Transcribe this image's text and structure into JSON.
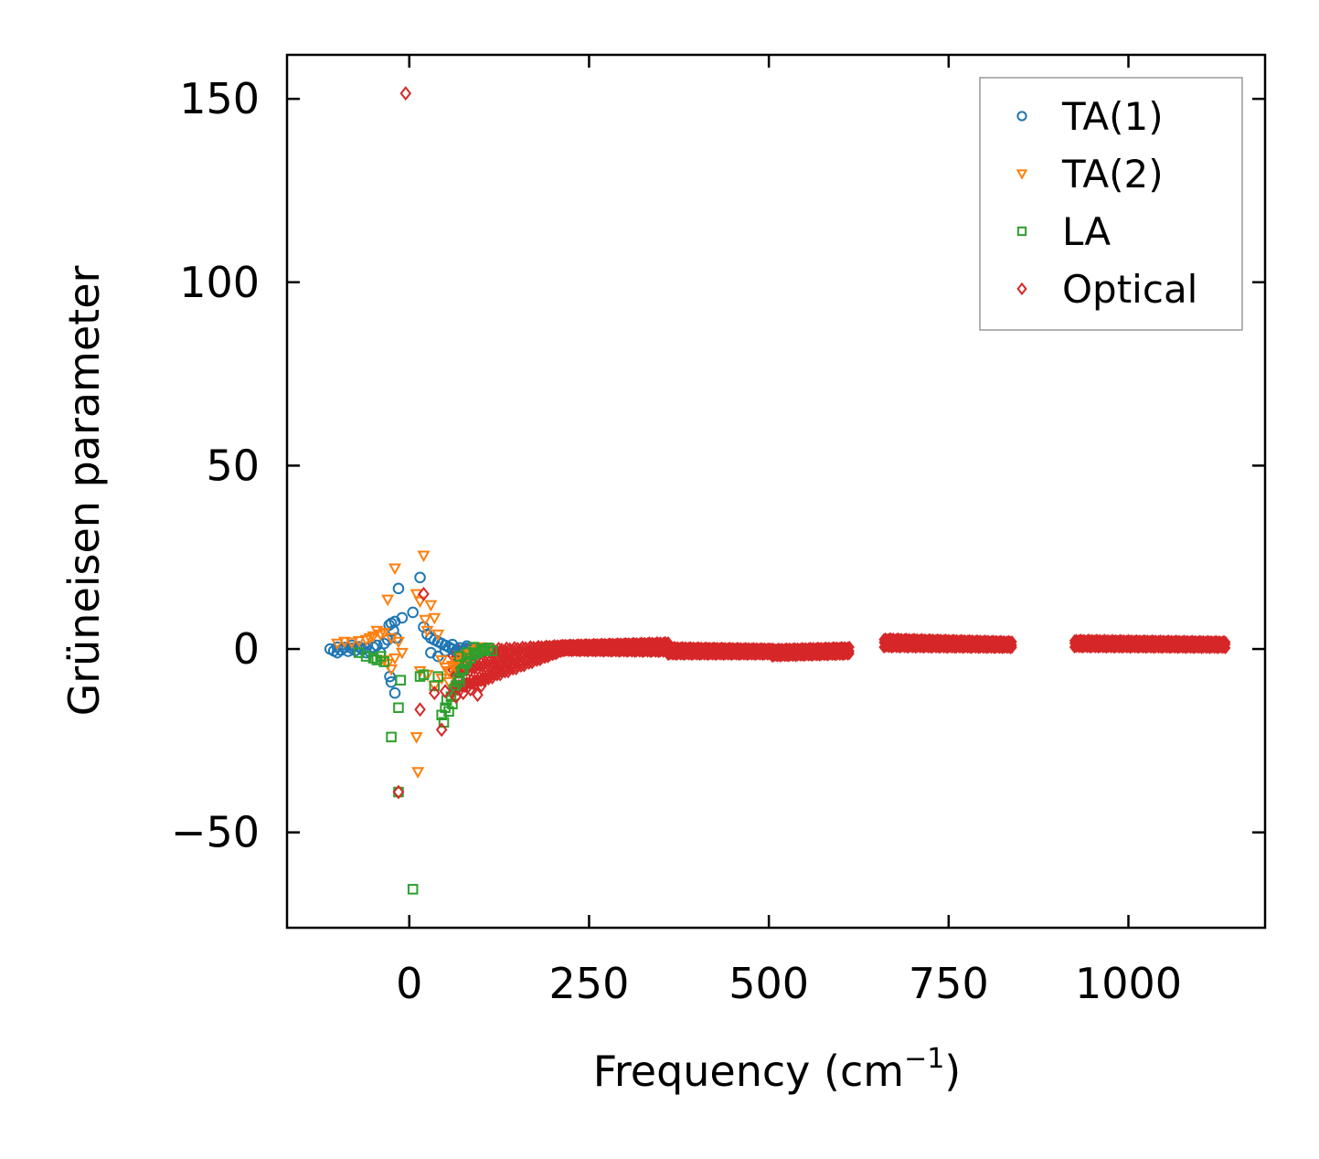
{
  "chart_data": {
    "type": "scatter",
    "title": "",
    "xlabel": "Frequency (cm",
    "xlabel_sup": "−1",
    "xlabel_suffix": ")",
    "ylabel": "Grüneisen parameter",
    "xlim": [
      -170,
      1190
    ],
    "ylim": [
      -76,
      162
    ],
    "x_ticks": [
      0,
      250,
      500,
      750,
      1000
    ],
    "x_tick_labels": [
      "0",
      "250",
      "500",
      "750",
      "1000"
    ],
    "y_ticks": [
      -50,
      0,
      50,
      100,
      150
    ],
    "y_tick_labels": [
      "−50",
      "0",
      "50",
      "100",
      "150"
    ],
    "grid": false,
    "legend_position": "top-right",
    "series": [
      {
        "name": "TA(1)",
        "marker": "circle",
        "color": "#1f77b4",
        "points": [
          [
            -110,
            0
          ],
          [
            -105,
            -0.5
          ],
          [
            -100,
            0.5
          ],
          [
            -95,
            -0.3
          ],
          [
            -90,
            0.4
          ],
          [
            -85,
            -0.6
          ],
          [
            -80,
            0.2
          ],
          [
            -75,
            -0.4
          ],
          [
            -70,
            0.6
          ],
          [
            -65,
            -0.2
          ],
          [
            -60,
            0.3
          ],
          [
            -55,
            -0.7
          ],
          [
            -50,
            0.5
          ],
          [
            -45,
            1.0
          ],
          [
            -40,
            -1.0
          ],
          [
            -35,
            1.5
          ],
          [
            -30,
            2.5
          ],
          [
            -28,
            6.5
          ],
          [
            -25,
            7.0
          ],
          [
            -22,
            5.0
          ],
          [
            -20,
            7.5
          ],
          [
            -18,
            3.0
          ],
          [
            -27,
            -7.5
          ],
          [
            -25,
            -9.0
          ],
          [
            -20,
            -12.0
          ],
          [
            -15,
            16.5
          ],
          [
            -10,
            8.5
          ],
          [
            5,
            10.0
          ],
          [
            15,
            19.5
          ],
          [
            20,
            6.0
          ],
          [
            25,
            4.0
          ],
          [
            30,
            3.0
          ],
          [
            35,
            2.5
          ],
          [
            40,
            2.0
          ],
          [
            45,
            1.5
          ],
          [
            50,
            1.0
          ],
          [
            55,
            0.5
          ],
          [
            60,
            0.0
          ],
          [
            65,
            -0.5
          ],
          [
            70,
            0.3
          ],
          [
            75,
            -0.3
          ],
          [
            80,
            0.2
          ],
          [
            85,
            -0.2
          ],
          [
            90,
            0.1
          ],
          [
            95,
            0.0
          ],
          [
            100,
            -0.1
          ],
          [
            105,
            0.0
          ],
          [
            110,
            0.1
          ],
          [
            30,
            -1.0
          ],
          [
            40,
            -2.0
          ],
          [
            50,
            -0.5
          ],
          [
            60,
            1.2
          ],
          [
            70,
            -1.2
          ],
          [
            80,
            0.8
          ],
          [
            -60,
            -1.0
          ],
          [
            -80,
            1.0
          ],
          [
            -100,
            -1.0
          ]
        ]
      },
      {
        "name": "TA(2)",
        "marker": "triangle-down",
        "color": "#ff7f0e",
        "points": [
          [
            -100,
            1.5
          ],
          [
            -90,
            2.0
          ],
          [
            -80,
            1.8
          ],
          [
            -70,
            2.2
          ],
          [
            -60,
            2.5
          ],
          [
            -55,
            3.0
          ],
          [
            -50,
            3.5
          ],
          [
            -45,
            5.0
          ],
          [
            -40,
            4.0
          ],
          [
            -35,
            4.5
          ],
          [
            -30,
            13.5
          ],
          [
            -25,
            3.0
          ],
          [
            -20,
            22.0
          ],
          [
            -15,
            2.0
          ],
          [
            -10,
            -1.0
          ],
          [
            -35,
            -3.0
          ],
          [
            -30,
            -4.0
          ],
          [
            -25,
            -5.5
          ],
          [
            -20,
            -2.5
          ],
          [
            10,
            15.0
          ],
          [
            15,
            13.0
          ],
          [
            20,
            25.5
          ],
          [
            22,
            8.0
          ],
          [
            25,
            5.0
          ],
          [
            30,
            12.0
          ],
          [
            35,
            8.5
          ],
          [
            40,
            4.0
          ],
          [
            45,
            -3.0
          ],
          [
            50,
            -5.0
          ],
          [
            55,
            -6.0
          ],
          [
            60,
            -4.5
          ],
          [
            65,
            -3.5
          ],
          [
            70,
            -2.5
          ],
          [
            75,
            -2.0
          ],
          [
            80,
            -1.5
          ],
          [
            85,
            -1.0
          ],
          [
            90,
            -0.5
          ],
          [
            95,
            0.0
          ],
          [
            100,
            0.5
          ],
          [
            105,
            0.2
          ],
          [
            110,
            -0.2
          ],
          [
            10,
            -24.0
          ],
          [
            12,
            -33.5
          ],
          [
            15,
            -6.0
          ],
          [
            25,
            -7.0
          ],
          [
            35,
            -10.0
          ],
          [
            45,
            -8.0
          ],
          [
            55,
            -9.0
          ],
          [
            65,
            -5.0
          ],
          [
            75,
            -4.0
          ]
        ]
      },
      {
        "name": "LA",
        "marker": "square",
        "color": "#2ca02c",
        "points": [
          [
            -70,
            -1.0
          ],
          [
            -60,
            -2.0
          ],
          [
            -50,
            -2.5
          ],
          [
            -45,
            -3.0
          ],
          [
            -40,
            -2.0
          ],
          [
            -35,
            -3.5
          ],
          [
            -25,
            -24.0
          ],
          [
            -15,
            -16.0
          ],
          [
            -12,
            -8.5
          ],
          [
            -15,
            -39.0
          ],
          [
            5,
            -65.5
          ],
          [
            15,
            -7.5
          ],
          [
            20,
            -7.0
          ],
          [
            35,
            -10.0
          ],
          [
            40,
            -7.5
          ],
          [
            45,
            -18.0
          ],
          [
            48,
            -20.0
          ],
          [
            50,
            -16.0
          ],
          [
            52,
            -14.0
          ],
          [
            55,
            -17.0
          ],
          [
            58,
            -13.0
          ],
          [
            60,
            -15.0
          ],
          [
            62,
            -11.0
          ],
          [
            65,
            -10.0
          ],
          [
            68,
            -8.0
          ],
          [
            70,
            -9.0
          ],
          [
            72,
            -6.0
          ],
          [
            75,
            -5.5
          ],
          [
            78,
            -4.0
          ],
          [
            80,
            -3.5
          ],
          [
            85,
            -2.5
          ],
          [
            90,
            -1.5
          ],
          [
            95,
            -1.0
          ],
          [
            100,
            -0.5
          ],
          [
            105,
            0.0
          ],
          [
            110,
            0.3
          ],
          [
            115,
            -0.5
          ],
          [
            70,
            -2.0
          ],
          [
            80,
            -1.0
          ],
          [
            90,
            0.5
          ],
          [
            100,
            0.0
          ]
        ]
      },
      {
        "name": "Optical",
        "marker": "diamond",
        "color": "#d62728",
        "points": [
          [
            -5,
            151.5
          ],
          [
            -15,
            -39.0
          ],
          [
            15,
            -16.5
          ],
          [
            20,
            15.0
          ],
          [
            45,
            -22.0
          ],
          [
            35,
            -12.0
          ],
          [
            50,
            -11.5
          ],
          [
            65,
            -13.0
          ],
          [
            75,
            -12.0
          ],
          [
            85,
            -11.0
          ],
          [
            95,
            -12.5
          ],
          [
            100,
            -10.0
          ],
          [
            110,
            -8.0
          ],
          [
            120,
            -6.0
          ],
          [
            130,
            -4.0
          ],
          [
            140,
            -3.0
          ],
          [
            150,
            -2.0
          ],
          [
            160,
            -1.5
          ]
        ],
        "bands": [
          {
            "x_min": 60,
            "x_max": 215,
            "y_start_low": -12,
            "y_end_low": -0.5,
            "y_start_high": 2.5,
            "y_end_high": 1.5
          },
          {
            "x_min": 215,
            "x_max": 360,
            "y_start_low": -0.5,
            "y_end_low": -0.8,
            "y_start_high": 1.5,
            "y_end_high": 2.5
          },
          {
            "x_min": 360,
            "x_max": 505,
            "y_start_low": -1.5,
            "y_end_low": -1.5,
            "y_start_high": 1.0,
            "y_end_high": 0.5
          },
          {
            "x_min": 505,
            "x_max": 612,
            "y_start_low": -2.0,
            "y_end_low": -1.5,
            "y_start_high": 0.5,
            "y_end_high": 1.0
          },
          {
            "x_min": 660,
            "x_max": 838,
            "y_start_low": 0.5,
            "y_end_low": 0.3,
            "y_start_high": 3.5,
            "y_end_high": 2.5
          },
          {
            "x_min": 925,
            "x_max": 1135,
            "y_start_low": 0.5,
            "y_end_low": 0.3,
            "y_start_high": 3.0,
            "y_end_high": 2.5
          }
        ]
      }
    ]
  }
}
